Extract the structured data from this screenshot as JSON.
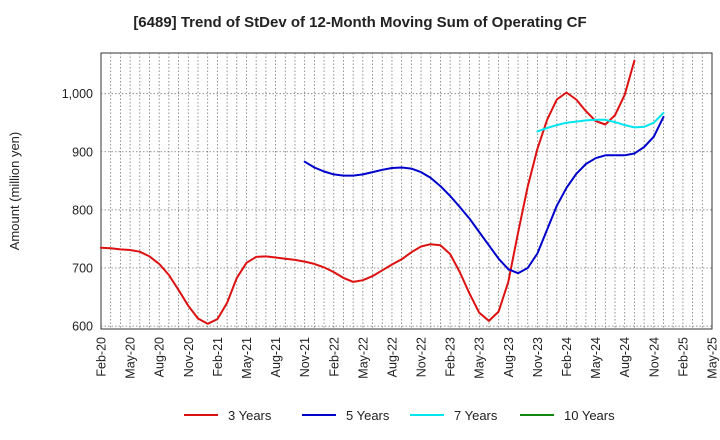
{
  "chart_data": {
    "type": "line",
    "title": "[6489]  Trend of StDev of 12-Month Moving Sum of Operating CF",
    "xlabel": "",
    "ylabel": "Amount (million yen)",
    "ylim": [
      595,
      1070
    ],
    "yticks": [
      600,
      700,
      800,
      900,
      1000
    ],
    "ytick_labels": [
      "600",
      "700",
      "800",
      "900",
      "1,000"
    ],
    "x_start": "2020-02",
    "x_end": "2025-05",
    "xtick_labels": [
      "Feb-20",
      "May-20",
      "Aug-20",
      "Nov-20",
      "Feb-21",
      "May-21",
      "Aug-21",
      "Nov-21",
      "Feb-22",
      "May-22",
      "Aug-22",
      "Nov-22",
      "Feb-23",
      "May-23",
      "Aug-23",
      "Nov-23",
      "Feb-24",
      "May-24",
      "Aug-24",
      "Nov-24",
      "Feb-25",
      "May-25"
    ],
    "grid": true,
    "legend_position": "bottom",
    "series": [
      {
        "name": "3 Years",
        "color": "#dd1111",
        "start": "2020-02",
        "values": [
          735,
          734,
          732,
          731,
          728,
          720,
          707,
          688,
          662,
          635,
          613,
          604,
          612,
          640,
          683,
          709,
          719,
          720,
          718,
          716,
          714,
          711,
          707,
          701,
          693,
          683,
          676,
          679,
          686,
          696,
          706,
          715,
          727,
          737,
          741,
          739,
          724,
          693,
          656,
          623,
          609,
          625,
          676,
          760,
          840,
          905,
          955,
          990,
          1002,
          990,
          970,
          953,
          947,
          963,
          998,
          1057
        ]
      },
      {
        "name": "5 Years",
        "color": "#0000cc",
        "start": "2021-11",
        "values": [
          883,
          873,
          866,
          861,
          859,
          859,
          861,
          865,
          869,
          872,
          873,
          871,
          865,
          855,
          841,
          824,
          805,
          785,
          762,
          739,
          716,
          698,
          691,
          700,
          725,
          766,
          807,
          838,
          862,
          879,
          889,
          894,
          894,
          894,
          897,
          908,
          926,
          960
        ]
      },
      {
        "name": "7 Years",
        "color": "#00e5ee",
        "start": "2023-11",
        "values": [
          935,
          941,
          946,
          950,
          952,
          954,
          955,
          955,
          951,
          946,
          942,
          943,
          950,
          967
        ]
      },
      {
        "name": "10 Years",
        "color": "#118811",
        "start": "2024-11",
        "values": []
      }
    ]
  }
}
